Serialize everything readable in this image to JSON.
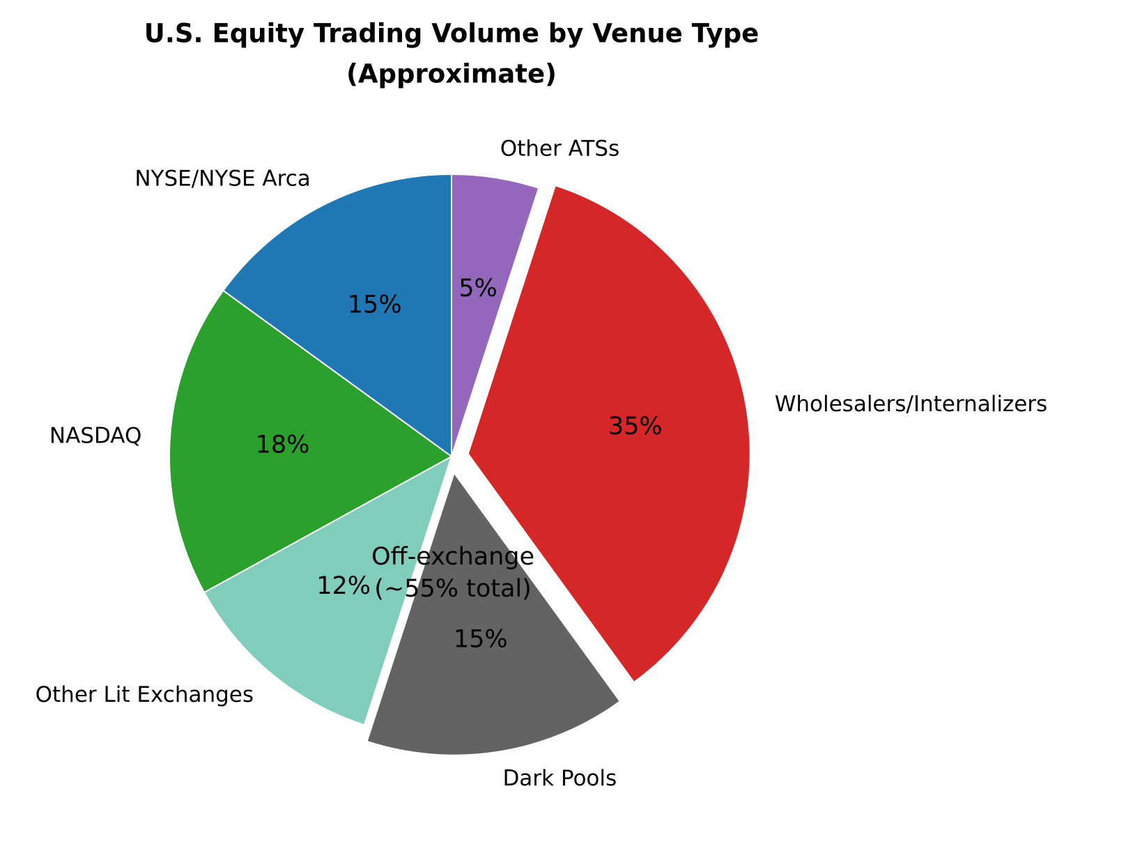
{
  "chart_data": {
    "type": "pie",
    "title": [
      "U.S. Equity Trading Volume by Venue Type",
      "(Approximate)"
    ],
    "categories": [
      "NYSE/NYSE Arca",
      "NASDAQ",
      "Other Lit Exchanges",
      "Dark Pools",
      "Wholesalers/Internalizers",
      "Other ATSs"
    ],
    "values": [
      15,
      18,
      12,
      15,
      35,
      5
    ],
    "value_labels": [
      "15%",
      "18%",
      "12%",
      "15%",
      "35%",
      "5%"
    ],
    "colors": [
      "#1f77b4",
      "#2ca02c",
      "#80cdbc",
      "#636363",
      "#d62728",
      "#9467bd"
    ],
    "explode": [
      false,
      false,
      false,
      true,
      true,
      false
    ],
    "start_angle": 90,
    "direction": "counterclockwise",
    "annotation": [
      "Off-exchange",
      "(~55% total)"
    ]
  }
}
